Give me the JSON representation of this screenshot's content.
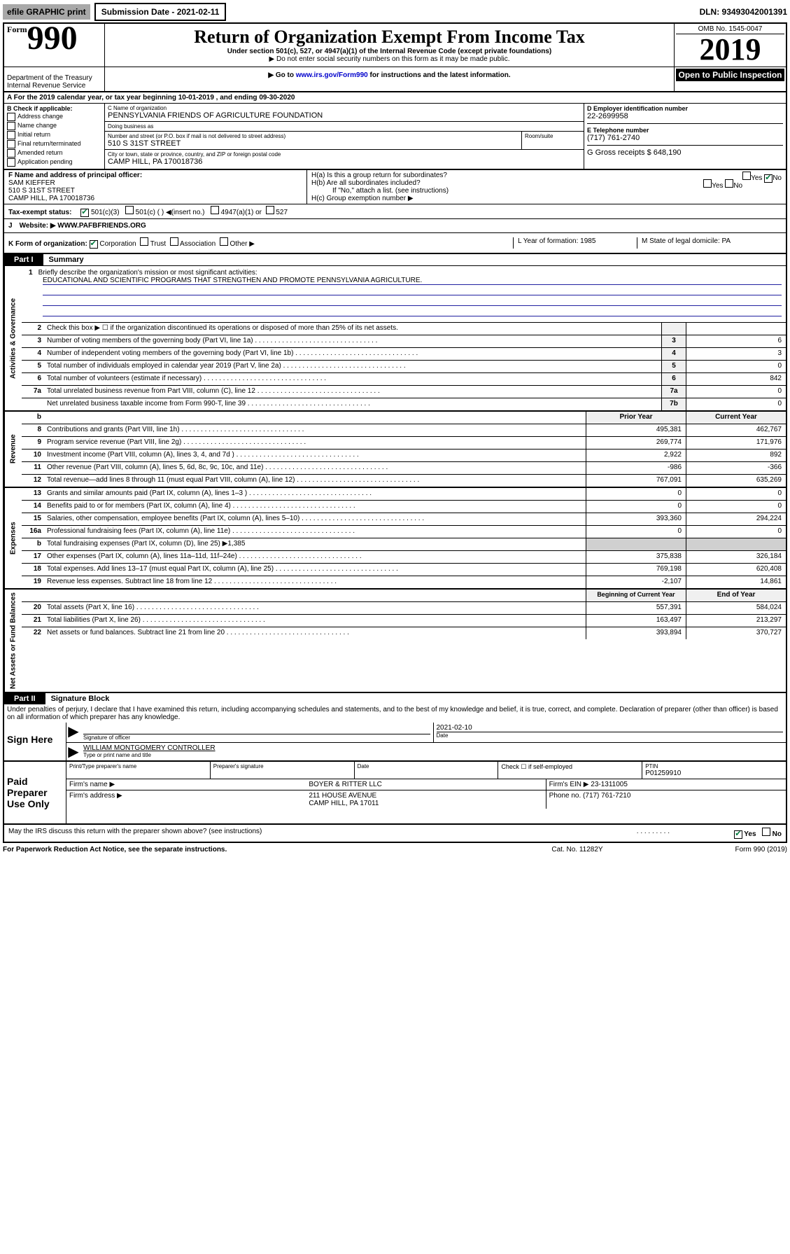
{
  "top": {
    "efile_label": "efile GRAPHIC print",
    "submission_label": "Submission Date - 2021-02-11",
    "dln": "DLN: 93493042001391"
  },
  "header": {
    "form_word": "Form",
    "form_num": "990",
    "title": "Return of Organization Exempt From Income Tax",
    "subtitle": "Under section 501(c), 527, or 4947(a)(1) of the Internal Revenue Code (except private foundations)",
    "note1": "▶ Do not enter social security numbers on this form as it may be made public.",
    "note2_prefix": "▶ Go to ",
    "note2_link": "www.irs.gov/Form990",
    "note2_suffix": " for instructions and the latest information.",
    "omb": "OMB No. 1545-0047",
    "year": "2019",
    "inspection": "Open to Public Inspection",
    "dept1": "Department of the Treasury",
    "dept2": "Internal Revenue Service"
  },
  "period": {
    "label": "A For the 2019 calendar year, or tax year beginning 10-01-2019     , and ending 09-30-2020"
  },
  "boxB": {
    "header": "B Check if applicable:",
    "opts": [
      "Address change",
      "Name change",
      "Initial return",
      "Final return/terminated",
      "Amended return",
      "Application pending"
    ]
  },
  "boxC": {
    "name_label": "C Name of organization",
    "name": "PENNSYLVANIA FRIENDS OF AGRICULTURE FOUNDATION",
    "dba_label": "Doing business as",
    "dba": "",
    "addr_label": "Number and street (or P.O. box if mail is not delivered to street address)",
    "addr": "510 S 31ST STREET",
    "room_label": "Room/suite",
    "city_label": "City or town, state or province, country, and ZIP or foreign postal code",
    "city": "CAMP HILL, PA  170018736"
  },
  "boxD": {
    "ein_label": "D Employer identification number",
    "ein": "22-2699958",
    "phone_label": "E Telephone number",
    "phone": "(717) 761-2740",
    "gross_label": "G Gross receipts $ 648,190"
  },
  "boxF": {
    "label": "F  Name and address of principal officer:",
    "name": "SAM KIEFFER",
    "addr1": "510 S 31ST STREET",
    "addr2": "CAMP HILL, PA  170018736"
  },
  "boxH": {
    "a": "H(a)  Is this a group return for subordinates?",
    "b": "H(b)  Are all subordinates included?",
    "b_note": "If \"No,\" attach a list. (see instructions)",
    "c": "H(c)  Group exemption number ▶"
  },
  "tax_status": {
    "label": "Tax-exempt status:",
    "opt1": "501(c)(3)",
    "opt2": "501(c) (   ) ◀(insert no.)",
    "opt3": "4947(a)(1) or",
    "opt4": "527"
  },
  "rowJ": {
    "label": "J",
    "text": "Website: ▶  WWW.PAFBFRIENDS.ORG"
  },
  "rowK": {
    "label": "K Form of organization:",
    "corp": "Corporation",
    "trust": "Trust",
    "assoc": "Association",
    "other": "Other ▶",
    "year_label": "L Year of formation: 1985",
    "state_label": "M State of legal domicile: PA"
  },
  "part1": {
    "tab": "Part I",
    "title": "Summary"
  },
  "mission": {
    "num": "1",
    "label": "Briefly describe the organization's mission or most significant activities:",
    "text": "EDUCATIONAL AND SCIENTIFIC PROGRAMS THAT STRENGTHEN AND PROMOTE PENNSYLVANIA AGRICULTURE."
  },
  "gov_lines": [
    {
      "num": "2",
      "label": "Check this box ▶ ☐  if the organization discontinued its operations or disposed of more than 25% of its net assets.",
      "nodots": true,
      "small": ""
    },
    {
      "num": "3",
      "label": "Number of voting members of the governing body (Part VI, line 1a)",
      "small": "3",
      "val": "6"
    },
    {
      "num": "4",
      "label": "Number of independent voting members of the governing body (Part VI, line 1b)",
      "small": "4",
      "val": "3"
    },
    {
      "num": "5",
      "label": "Total number of individuals employed in calendar year 2019 (Part V, line 2a)",
      "small": "5",
      "val": "0"
    },
    {
      "num": "6",
      "label": "Total number of volunteers (estimate if necessary)",
      "small": "6",
      "val": "842"
    },
    {
      "num": "7a",
      "label": "Total unrelated business revenue from Part VIII, column (C), line 12",
      "small": "7a",
      "val": "0"
    },
    {
      "num": "",
      "label": "Net unrelated business taxable income from Form 990-T, line 39",
      "small": "7b",
      "val": "0"
    }
  ],
  "two_col_header": {
    "prior": "Prior Year",
    "current": "Current Year"
  },
  "revenue_lines": [
    {
      "num": "8",
      "label": "Contributions and grants (Part VIII, line 1h)",
      "prior": "495,381",
      "current": "462,767"
    },
    {
      "num": "9",
      "label": "Program service revenue (Part VIII, line 2g)",
      "prior": "269,774",
      "current": "171,976"
    },
    {
      "num": "10",
      "label": "Investment income (Part VIII, column (A), lines 3, 4, and 7d )",
      "prior": "2,922",
      "current": "892"
    },
    {
      "num": "11",
      "label": "Other revenue (Part VIII, column (A), lines 5, 6d, 8c, 9c, 10c, and 11e)",
      "prior": "-986",
      "current": "-366"
    },
    {
      "num": "12",
      "label": "Total revenue—add lines 8 through 11 (must equal Part VIII, column (A), line 12)",
      "prior": "767,091",
      "current": "635,269"
    }
  ],
  "expense_lines": [
    {
      "num": "13",
      "label": "Grants and similar amounts paid (Part IX, column (A), lines 1–3 )",
      "prior": "0",
      "current": "0"
    },
    {
      "num": "14",
      "label": "Benefits paid to or for members (Part IX, column (A), line 4)",
      "prior": "0",
      "current": "0"
    },
    {
      "num": "15",
      "label": "Salaries, other compensation, employee benefits (Part IX, column (A), lines 5–10)",
      "prior": "393,360",
      "current": "294,224"
    },
    {
      "num": "16a",
      "label": "Professional fundraising fees (Part IX, column (A), line 11e)",
      "prior": "0",
      "current": "0"
    },
    {
      "num": "b",
      "label": "Total fundraising expenses (Part IX, column (D), line 25) ▶1,385",
      "prior": "",
      "current": "",
      "gray": true,
      "nodots": true
    },
    {
      "num": "17",
      "label": "Other expenses (Part IX, column (A), lines 11a–11d, 11f–24e)",
      "prior": "375,838",
      "current": "326,184"
    },
    {
      "num": "18",
      "label": "Total expenses. Add lines 13–17 (must equal Part IX, column (A), line 25)",
      "prior": "769,198",
      "current": "620,408"
    },
    {
      "num": "19",
      "label": "Revenue less expenses. Subtract line 18 from line 12",
      "prior": "-2,107",
      "current": "14,861"
    }
  ],
  "net_header": {
    "begin": "Beginning of Current Year",
    "end": "End of Year"
  },
  "net_lines": [
    {
      "num": "20",
      "label": "Total assets (Part X, line 16)",
      "prior": "557,391",
      "current": "584,024"
    },
    {
      "num": "21",
      "label": "Total liabilities (Part X, line 26)",
      "prior": "163,497",
      "current": "213,297"
    },
    {
      "num": "22",
      "label": "Net assets or fund balances. Subtract line 21 from line 20",
      "prior": "393,894",
      "current": "370,727"
    }
  ],
  "vtabs": {
    "gov": "Activities & Governance",
    "rev": "Revenue",
    "exp": "Expenses",
    "net": "Net Assets or Fund Balances"
  },
  "part2": {
    "tab": "Part II",
    "title": "Signature Block",
    "declaration": "Under penalties of perjury, I declare that I have examined this return, including accompanying schedules and statements, and to the best of my knowledge and belief, it is true, correct, and complete. Declaration of preparer (other than officer) is based on all information of which preparer has any knowledge."
  },
  "sign": {
    "label": "Sign Here",
    "sig_officer": "Signature of officer",
    "date": "2021-02-10",
    "date_label": "Date",
    "name": "WILLIAM MONTGOMERY CONTROLLER",
    "name_label": "Type or print name and title"
  },
  "paid": {
    "label": "Paid Preparer Use Only",
    "print_label": "Print/Type preparer's name",
    "sig_label": "Preparer's signature",
    "date_label": "Date",
    "check_label": "Check ☐ if self-employed",
    "ptin_label": "PTIN",
    "ptin": "P01259910",
    "firm_name_label": "Firm's name      ▶",
    "firm_name": "BOYER & RITTER LLC",
    "firm_ein_label": "Firm's EIN ▶",
    "firm_ein": "23-1311005",
    "firm_addr_label": "Firm's address ▶",
    "firm_addr": "211 HOUSE AVENUE",
    "firm_city": "CAMP HILL, PA  17011",
    "phone_label": "Phone no.",
    "phone": "(717) 761-7210"
  },
  "discuss": {
    "label": "May the IRS discuss this return with the preparer shown above? (see instructions)",
    "yes": "Yes",
    "no": "No"
  },
  "footer": {
    "left": "For Paperwork Reduction Act Notice, see the separate instructions.",
    "mid": "Cat. No. 11282Y",
    "right": "Form 990 (2019)"
  }
}
